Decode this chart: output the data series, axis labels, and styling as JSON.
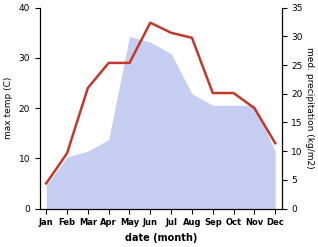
{
  "months": [
    "Jan",
    "Feb",
    "Mar",
    "Apr",
    "May",
    "Jun",
    "Jul",
    "Aug",
    "Sep",
    "Oct",
    "Nov",
    "Dec"
  ],
  "temperature": [
    5,
    11,
    24,
    29,
    29,
    37,
    35,
    34,
    23,
    23,
    20,
    13
  ],
  "precipitation": [
    4,
    9,
    10,
    12,
    30,
    29,
    27,
    20,
    18,
    18,
    18,
    10
  ],
  "temp_color": "#c0392b",
  "precip_color": "#b3bfee",
  "left_ylim": [
    0,
    40
  ],
  "right_ylim": [
    0,
    35
  ],
  "left_yticks": [
    0,
    10,
    20,
    30,
    40
  ],
  "right_yticks": [
    0,
    5,
    10,
    15,
    20,
    25,
    30,
    35
  ],
  "ylabel_left": "max temp (C)",
  "ylabel_right": "med. precipitation (kg/m2)",
  "xlabel": "date (month)",
  "fig_width": 3.18,
  "fig_height": 2.47,
  "dpi": 100
}
